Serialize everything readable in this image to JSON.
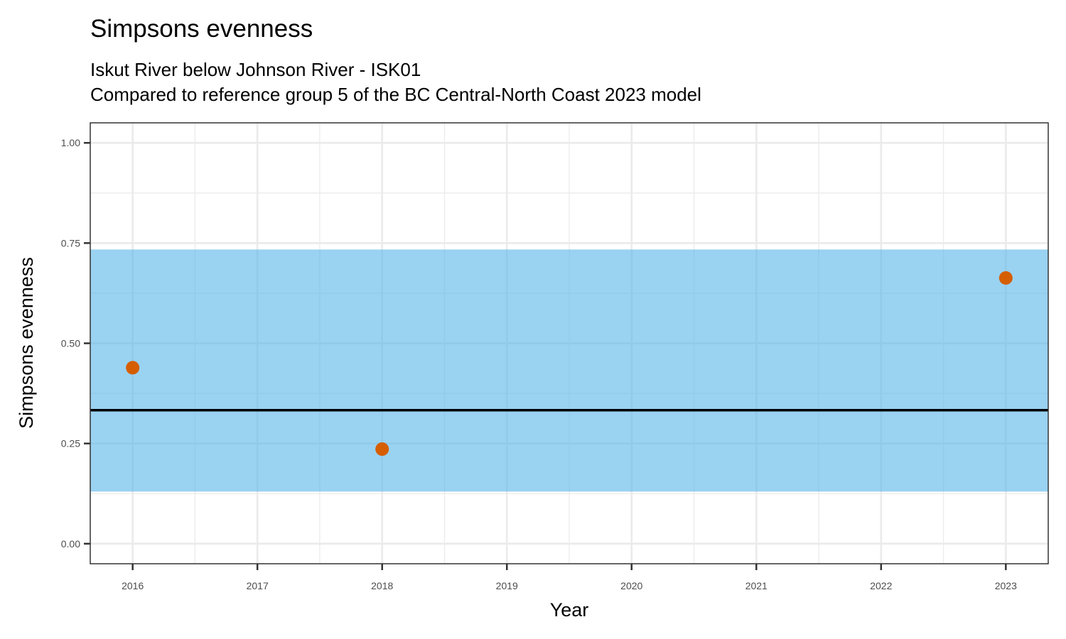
{
  "chart_data": {
    "type": "scatter",
    "title": "Simpsons evenness",
    "subtitle_lines": [
      "Iskut River below Johnson River - ISK01",
      "Compared to reference group 5 of the BC Central-North Coast 2023 model"
    ],
    "xlabel": "Year",
    "ylabel": "Simpsons evenness",
    "x_ticks": [
      2016,
      2017,
      2018,
      2019,
      2020,
      2021,
      2022,
      2023
    ],
    "y_ticks": [
      "0.00",
      "0.25",
      "0.50",
      "0.75",
      "1.00"
    ],
    "xlim": [
      2015.66,
      2023.34
    ],
    "ylim": [
      -0.05,
      1.05
    ],
    "grid": true,
    "reference_band": {
      "lower": 0.13,
      "upper": 0.734,
      "color": "#56B4E9"
    },
    "reference_line": {
      "value": 0.333,
      "color": "#000000"
    },
    "points": [
      {
        "x": 2016,
        "y": 0.439
      },
      {
        "x": 2018,
        "y": 0.236
      },
      {
        "x": 2023,
        "y": 0.663
      }
    ],
    "point_color": "#D55E00"
  }
}
